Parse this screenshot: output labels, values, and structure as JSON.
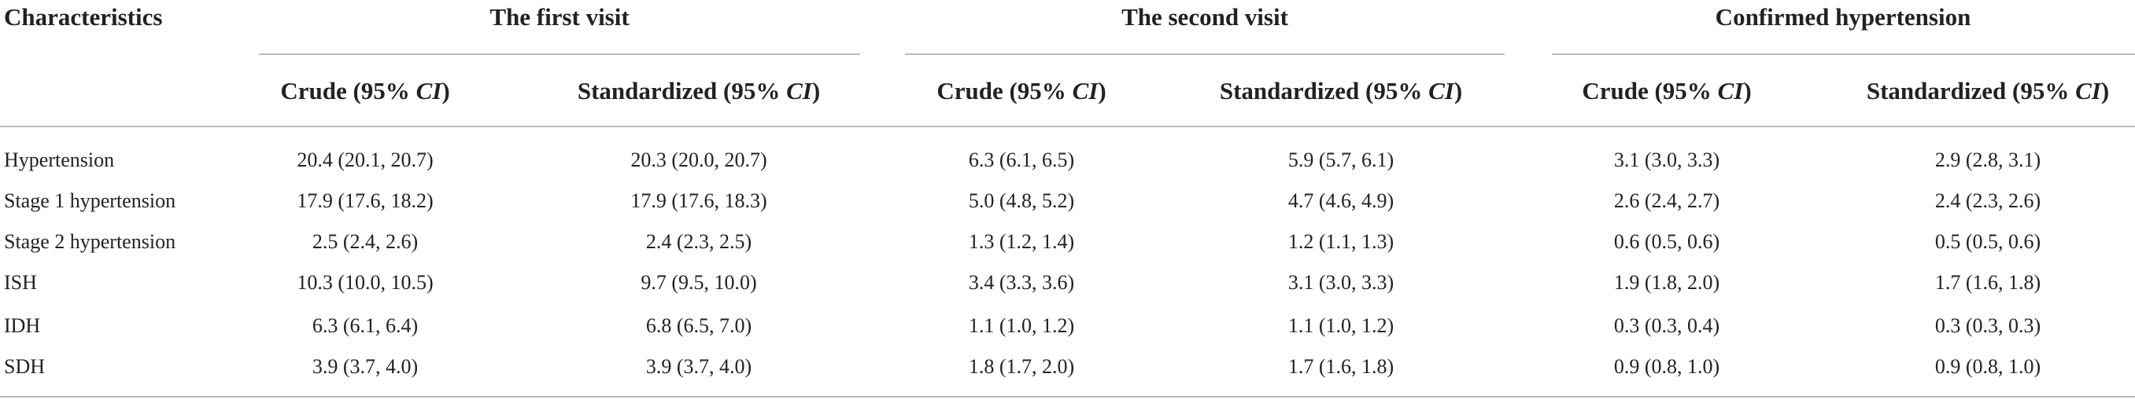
{
  "table": {
    "stub": "Characteristics",
    "groups": [
      "The first visit",
      "The second visit",
      "Confirmed hypertension"
    ],
    "subheaders": [
      {
        "pre": "Crude (95% ",
        "em": "CI",
        "post": ")"
      },
      {
        "pre": "Standardized (95% ",
        "em": "CI",
        "post": ")"
      },
      {
        "pre": "Crude (95% ",
        "em": "CI",
        "post": ")"
      },
      {
        "pre": "Standardized (95% ",
        "em": "CI",
        "post": ")"
      },
      {
        "pre": "Crude (95% ",
        "em": "CI",
        "post": ")"
      },
      {
        "pre": "Standardized (95% ",
        "em": "CI",
        "post": ")"
      }
    ],
    "rows": [
      {
        "label": "Hypertension",
        "cells": [
          "20.4 (20.1, 20.7)",
          "20.3 (20.0, 20.7)",
          "6.3 (6.1, 6.5)",
          "5.9 (5.7, 6.1)",
          "3.1 (3.0, 3.3)",
          "2.9 (2.8, 3.1)"
        ]
      },
      {
        "label": "Stage 1 hypertension",
        "cells": [
          "17.9 (17.6, 18.2)",
          "17.9 (17.6, 18.3)",
          "5.0 (4.8, 5.2)",
          "4.7 (4.6, 4.9)",
          "2.6 (2.4, 2.7)",
          "2.4 (2.3, 2.6)"
        ]
      },
      {
        "label": "Stage 2 hypertension",
        "cells": [
          "2.5 (2.4, 2.6)",
          "2.4 (2.3, 2.5)",
          "1.3 (1.2, 1.4)",
          "1.2 (1.1, 1.3)",
          "0.6 (0.5, 0.6)",
          "0.5 (0.5, 0.6)"
        ]
      },
      {
        "label": "ISH",
        "cells": [
          "10.3 (10.0, 10.5)",
          "9.7 (9.5, 10.0)",
          "3.4 (3.3, 3.6)",
          "3.1 (3.0, 3.3)",
          "1.9 (1.8, 2.0)",
          "1.7 (1.6, 1.8)"
        ]
      },
      {
        "label": "IDH",
        "cells": [
          "6.3 (6.1, 6.4)",
          "6.8 (6.5, 7.0)",
          "1.1 (1.0, 1.2)",
          "1.1 (1.0, 1.2)",
          "0.3 (0.3, 0.4)",
          "0.3 (0.3, 0.3)"
        ]
      },
      {
        "label": "SDH",
        "cells": [
          "3.9 (3.7, 4.0)",
          "3.9 (3.7, 4.0)",
          "1.8 (1.7, 2.0)",
          "1.7 (1.6, 1.8)",
          "0.9 (0.8, 1.0)",
          "0.9 (0.8, 1.0)"
        ]
      }
    ]
  }
}
